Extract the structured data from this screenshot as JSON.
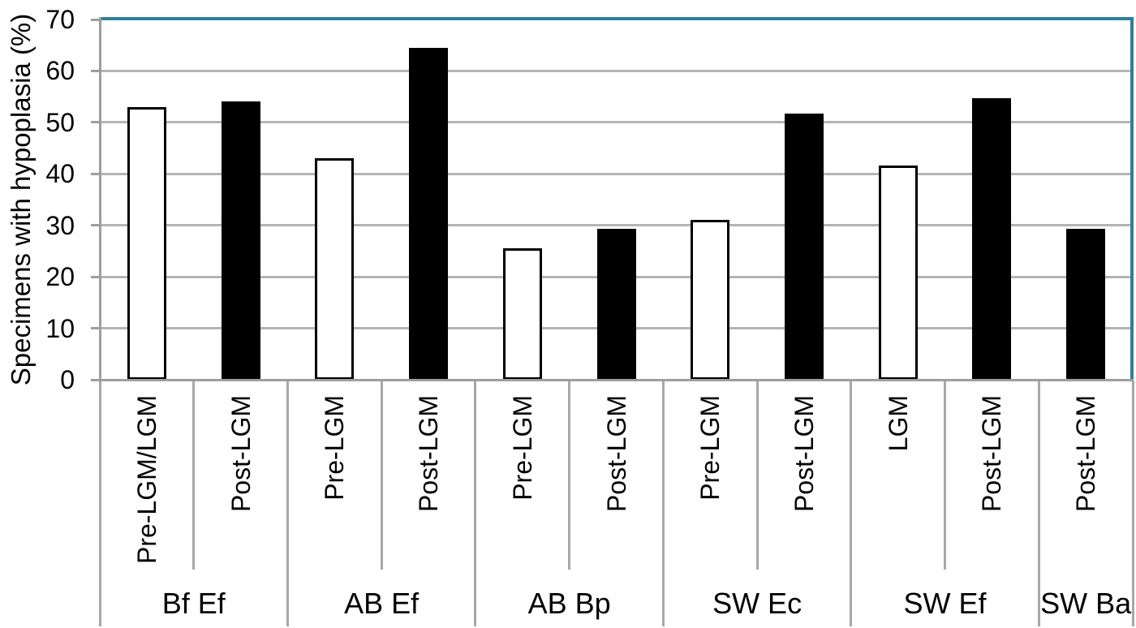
{
  "chart_data": {
    "type": "bar",
    "title": "",
    "ylabel": "Specimens with hypoplasia (%)",
    "xlabel": "",
    "ylim": [
      0,
      70
    ],
    "yticks": [
      0,
      10,
      20,
      30,
      40,
      50,
      60,
      70
    ],
    "grid": true,
    "legend_position": "none",
    "groups": [
      {
        "label": "Bf Ef",
        "bars": [
          {
            "label": "Pre-LGM/LGM",
            "value": 53,
            "fill": "white"
          },
          {
            "label": "Post-LGM",
            "value": 54,
            "fill": "black"
          }
        ]
      },
      {
        "label": "AB Ef",
        "bars": [
          {
            "label": "Pre-LGM",
            "value": 43,
            "fill": "white"
          },
          {
            "label": "Post-LGM",
            "value": 64.5,
            "fill": "black"
          }
        ]
      },
      {
        "label": "AB Bp",
        "bars": [
          {
            "label": "Pre-LGM",
            "value": 25.6,
            "fill": "white"
          },
          {
            "label": "Post-LGM",
            "value": 29.4,
            "fill": "black"
          }
        ]
      },
      {
        "label": "SW Ec",
        "bars": [
          {
            "label": "Pre-LGM",
            "value": 31,
            "fill": "white"
          },
          {
            "label": "Post-LGM",
            "value": 51.7,
            "fill": "black"
          }
        ]
      },
      {
        "label": "SW Ef",
        "bars": [
          {
            "label": "LGM",
            "value": 41.7,
            "fill": "white"
          },
          {
            "label": "Post-LGM",
            "value": 54.7,
            "fill": "black"
          }
        ]
      },
      {
        "label": "SW Ba",
        "bars": [
          {
            "label": "Post-LGM",
            "value": 29.4,
            "fill": "black"
          }
        ]
      }
    ],
    "colors": {
      "plot_border_accent": "#2E7E9C",
      "gridline": "#B4B4B4",
      "axis_line": "#9E9E9E",
      "category_divider": "#A8A8A8",
      "bar_fill_black": "#000000",
      "bar_fill_white": "#FFFFFF",
      "bar_outline": "#000000",
      "text": "#000000"
    }
  }
}
